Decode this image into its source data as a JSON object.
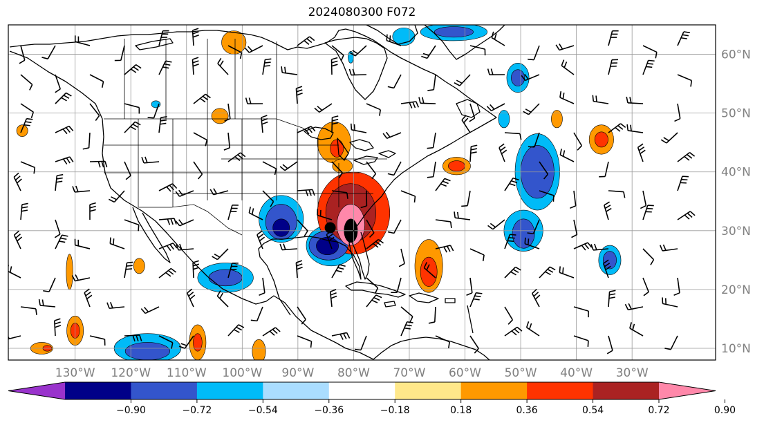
{
  "title": "2024080300 F072",
  "map": {
    "lon_range": [
      -142,
      -15
    ],
    "lat_range": [
      8,
      65
    ],
    "lon_ticks": [
      {
        "value": -130,
        "label": "130°W"
      },
      {
        "value": -120,
        "label": "120°W"
      },
      {
        "value": -110,
        "label": "110°W"
      },
      {
        "value": -100,
        "label": "100°W"
      },
      {
        "value": -90,
        "label": "90°W"
      },
      {
        "value": -80,
        "label": "80°W"
      },
      {
        "value": -70,
        "label": "70°W"
      },
      {
        "value": -60,
        "label": "60°W"
      },
      {
        "value": -50,
        "label": "50°W"
      },
      {
        "value": -40,
        "label": "40°W"
      },
      {
        "value": -30,
        "label": "30°W"
      }
    ],
    "lat_ticks": [
      {
        "value": 60,
        "label": "60°N"
      },
      {
        "value": 50,
        "label": "50°N"
      },
      {
        "value": 40,
        "label": "40°N"
      },
      {
        "value": 30,
        "label": "30°N"
      },
      {
        "value": 20,
        "label": "20°N"
      },
      {
        "value": 10,
        "label": "10°N"
      }
    ],
    "marker": {
      "lon": -84.2,
      "lat": 30.5
    },
    "field_blobs": [
      {
        "lon": -80,
        "lat": 33,
        "rlon": 6.5,
        "rlat": 7,
        "level": 3
      },
      {
        "lon": -80.5,
        "lat": 33,
        "rlon": 4.5,
        "rlat": 5,
        "level": 4
      },
      {
        "lon": -80.5,
        "lat": 31,
        "rlon": 2.5,
        "rlat": 3.5,
        "level": 5
      },
      {
        "lon": -80.5,
        "lat": 30,
        "rlon": 1.2,
        "rlat": 2,
        "level": 6
      },
      {
        "lon": -84,
        "lat": 27.5,
        "rlon": 4.5,
        "rlat": 3.5,
        "level": -2
      },
      {
        "lon": -84.5,
        "lat": 27.5,
        "rlon": 3.5,
        "rlat": 2.5,
        "level": -3
      },
      {
        "lon": -84.7,
        "lat": 27.4,
        "rlon": 2,
        "rlat": 1.5,
        "level": -4
      },
      {
        "lon": -93,
        "lat": 32,
        "rlon": 4,
        "rlat": 4,
        "level": -2
      },
      {
        "lon": -93,
        "lat": 31.5,
        "rlon": 2.8,
        "rlat": 3,
        "level": -3
      },
      {
        "lon": -93,
        "lat": 30.5,
        "rlon": 1.5,
        "rlat": 1.5,
        "level": -4
      },
      {
        "lon": -66.5,
        "lat": 24,
        "rlon": 2.5,
        "rlat": 4.5,
        "level": 2
      },
      {
        "lon": -66.5,
        "lat": 23,
        "rlon": 1.5,
        "rlat": 2.5,
        "level": 3
      },
      {
        "lon": -47,
        "lat": 40,
        "rlon": 4,
        "rlat": 6.5,
        "level": -2
      },
      {
        "lon": -47,
        "lat": 40,
        "rlon": 3,
        "rlat": 4.5,
        "level": -3
      },
      {
        "lon": -49.5,
        "lat": 30,
        "rlon": 3.5,
        "rlat": 3.5,
        "level": -2
      },
      {
        "lon": -49.5,
        "lat": 29.5,
        "rlon": 2,
        "rlat": 2.5,
        "level": -3
      },
      {
        "lon": -34,
        "lat": 25,
        "rlon": 2,
        "rlat": 2.5,
        "level": -2
      },
      {
        "lon": -34,
        "lat": 25,
        "rlon": 1.2,
        "rlat": 1.5,
        "level": -3
      },
      {
        "lon": -35.5,
        "lat": 45.5,
        "rlon": 2.2,
        "rlat": 2.5,
        "level": 2
      },
      {
        "lon": -35.5,
        "lat": 45.5,
        "rlon": 1.2,
        "rlat": 1.3,
        "level": 3
      },
      {
        "lon": -61.5,
        "lat": 41,
        "rlon": 2.5,
        "rlat": 1.5,
        "level": 2
      },
      {
        "lon": -61.5,
        "lat": 41,
        "rlon": 1.5,
        "rlat": 0.9,
        "level": 3
      },
      {
        "lon": -50.5,
        "lat": 56,
        "rlon": 2,
        "rlat": 2.5,
        "level": -2
      },
      {
        "lon": -50.5,
        "lat": 56,
        "rlon": 1.2,
        "rlat": 1.4,
        "level": -3
      },
      {
        "lon": -53,
        "lat": 49,
        "rlon": 1,
        "rlat": 1.5,
        "level": -2
      },
      {
        "lon": -62,
        "lat": 63.8,
        "rlon": 6,
        "rlat": 1.5,
        "level": -2
      },
      {
        "lon": -62,
        "lat": 63.8,
        "rlon": 3.5,
        "rlat": 0.9,
        "level": -3
      },
      {
        "lon": -71,
        "lat": 63,
        "rlon": 2,
        "rlat": 1.5,
        "level": -2
      },
      {
        "lon": -103,
        "lat": 22,
        "rlon": 5,
        "rlat": 2.5,
        "level": -2
      },
      {
        "lon": -103,
        "lat": 22,
        "rlon": 3,
        "rlat": 1.4,
        "level": -3
      },
      {
        "lon": -117,
        "lat": 10,
        "rlon": 6,
        "rlat": 2.5,
        "level": -2
      },
      {
        "lon": -117,
        "lat": 9.5,
        "rlon": 4,
        "rlat": 1.5,
        "level": -3
      },
      {
        "lon": -108,
        "lat": 11,
        "rlon": 1.5,
        "rlat": 3,
        "level": 2
      },
      {
        "lon": -108,
        "lat": 11,
        "rlon": 0.8,
        "rlat": 1.5,
        "level": 3
      },
      {
        "lon": -130,
        "lat": 13,
        "rlon": 1.5,
        "rlat": 2.5,
        "level": 2
      },
      {
        "lon": -130,
        "lat": 13,
        "rlon": 0.8,
        "rlat": 1.3,
        "level": 3
      },
      {
        "lon": -136,
        "lat": 10,
        "rlon": 2,
        "rlat": 1,
        "level": 2
      },
      {
        "lon": -135,
        "lat": 10,
        "rlon": 0.8,
        "rlat": 0.5,
        "level": 3
      },
      {
        "lon": -131,
        "lat": 23,
        "rlon": 0.6,
        "rlat": 3,
        "level": 2
      },
      {
        "lon": -118.5,
        "lat": 24,
        "rlon": 1,
        "rlat": 1.3,
        "level": 2
      },
      {
        "lon": -97,
        "lat": 9.5,
        "rlon": 1.2,
        "rlat": 2,
        "level": 2
      },
      {
        "lon": -101.5,
        "lat": 62,
        "rlon": 2.2,
        "rlat": 2,
        "level": 2
      },
      {
        "lon": -104,
        "lat": 49.5,
        "rlon": 1.5,
        "rlat": 1.3,
        "level": 2
      },
      {
        "lon": -83.5,
        "lat": 45,
        "rlon": 3,
        "rlat": 3.5,
        "level": 2
      },
      {
        "lon": -83,
        "lat": 44,
        "rlon": 1.2,
        "rlat": 1.5,
        "level": 3
      },
      {
        "lon": -82,
        "lat": 41,
        "rlon": 1.8,
        "rlat": 1.2,
        "level": 2
      },
      {
        "lon": -139.5,
        "lat": 47,
        "rlon": 1,
        "rlat": 1,
        "level": 2
      },
      {
        "lon": -43.5,
        "lat": 49,
        "rlon": 1,
        "rlat": 1.5,
        "level": 2
      },
      {
        "lon": -115.5,
        "lat": 51.5,
        "rlon": 0.8,
        "rlat": 0.6,
        "level": -2
      },
      {
        "lon": -80.5,
        "lat": 59.5,
        "rlon": 0.5,
        "rlat": 1,
        "level": -2
      }
    ]
  },
  "colorbar": {
    "colors": [
      "#9933cc",
      "#000088",
      "#3355cc",
      "#00bbf8",
      "#aaddff",
      "#ffffff",
      "#ffe88a",
      "#ff9900",
      "#ff3300",
      "#aa2222",
      "#ff88aa"
    ],
    "tick_labels": [
      "−0.90",
      "−0.72",
      "−0.54",
      "−0.36",
      "−0.18",
      "0.18",
      "0.36",
      "0.54",
      "0.72",
      "0.90"
    ]
  }
}
